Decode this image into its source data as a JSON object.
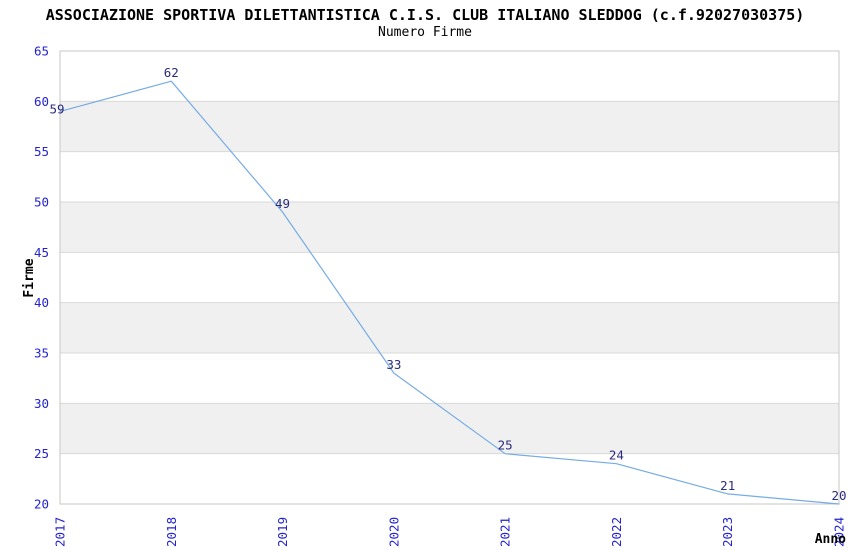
{
  "header": {
    "title": "ASSOCIAZIONE SPORTIVA DILETTANTISTICA C.I.S. CLUB ITALIANO SLEDDOG (c.f.92027030375)",
    "subtitle": "Numero Firme"
  },
  "chart_data": {
    "type": "line",
    "title": "ASSOCIAZIONE SPORTIVA DILETTANTISTICA C.I.S. CLUB ITALIANO SLEDDOG (c.f.92027030375)",
    "subtitle": "Numero Firme",
    "xlabel": "Anno",
    "ylabel": "Firme",
    "categories": [
      "2017",
      "2018",
      "2019",
      "2020",
      "2021",
      "2022",
      "2023",
      "2024"
    ],
    "values": [
      59,
      62,
      49,
      33,
      25,
      24,
      21,
      20
    ],
    "ylim": [
      20,
      65
    ],
    "ytick_step": 5,
    "yticks": [
      20,
      25,
      30,
      35,
      40,
      45,
      50,
      55,
      60,
      65
    ],
    "grid": "horizontal",
    "legend": "none",
    "x_tick_rotation_degrees": 90,
    "banded_background": "alternating gray bands between 25-30, 35-40, 45-50, 55-60",
    "data_labels_shown": true,
    "colors": {
      "line": "#76ACE5",
      "tick_label": "#2323CF",
      "data_label": "#2B2B7E",
      "band": "#F0F0F0",
      "grid": "#D9D9D9",
      "border": "#C7C7C7",
      "text": "#000000",
      "background": "#FFFFFF"
    }
  }
}
